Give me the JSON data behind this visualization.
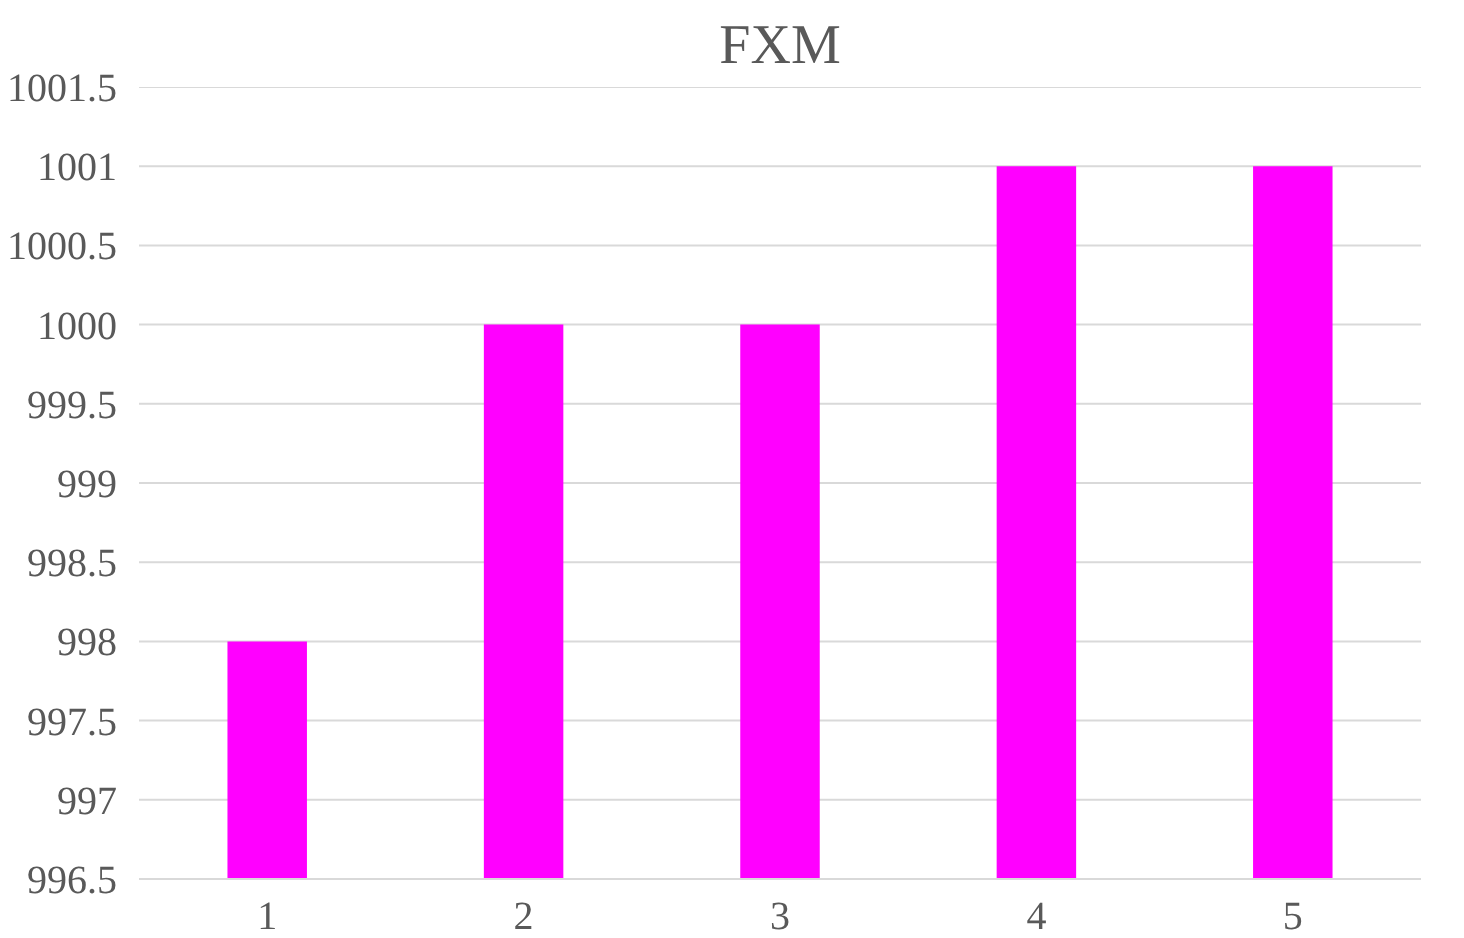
{
  "chart_data": {
    "type": "bar",
    "title": "FXM",
    "categories": [
      "1",
      "2",
      "3",
      "4",
      "5"
    ],
    "values": [
      998,
      1000,
      1000,
      1001,
      1001
    ],
    "color": "#ff00ff",
    "ylim": [
      996.5,
      1001.5
    ],
    "yticks": [
      996.5,
      997,
      997.5,
      998,
      998.5,
      999,
      999.5,
      1000,
      1000.5,
      1001,
      1001.5
    ],
    "grid": "y"
  }
}
